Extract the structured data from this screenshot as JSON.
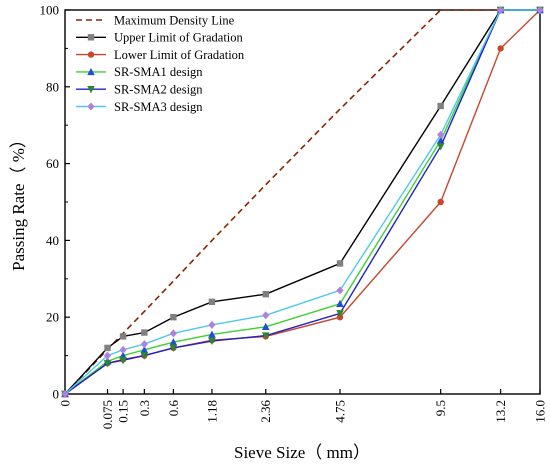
{
  "chart_data": {
    "type": "line",
    "xlabel": "Sieve Size（ mm）",
    "ylabel": "Passing Rate（ %）",
    "ylim": [
      0,
      100
    ],
    "y_ticks": [
      0,
      20,
      40,
      60,
      80,
      100
    ],
    "x_tick_labels": [
      "0",
      "0.075",
      "0.15",
      "0.3",
      "0.6",
      "1.18",
      "2.36",
      "4.75",
      "9.5",
      "13.2",
      "16.0"
    ],
    "x_scale": "power 0.45 of sieve size",
    "grid": false,
    "legend": "top-left",
    "series": [
      {
        "name": "Maximum Density Line",
        "color": "#8B2500",
        "style": "dashed",
        "marker": "none",
        "x": [
          0,
          0.075,
          0.15,
          0.3,
          0.6,
          1.18,
          2.36,
          4.75,
          9.5,
          13.2,
          16.0
        ],
        "y": [
          0,
          11.6,
          15.8,
          21.5,
          29.4,
          40.0,
          54.5,
          74.2,
          100,
          100,
          100
        ]
      },
      {
        "name": "Upper Limit of Gradation",
        "color": "#000000",
        "style": "solid",
        "marker": "square",
        "x": [
          0,
          0.075,
          0.15,
          0.3,
          0.6,
          1.18,
          2.36,
          4.75,
          9.5,
          13.2,
          16.0
        ],
        "y": [
          0,
          12,
          15,
          16,
          20,
          24,
          26,
          34,
          75,
          100,
          100
        ]
      },
      {
        "name": "Lower Limit of Gradation",
        "color": "#C8472C",
        "style": "solid",
        "marker": "circle",
        "x": [
          0,
          0.075,
          0.15,
          0.3,
          0.6,
          1.18,
          2.36,
          4.75,
          9.5,
          13.2,
          16.0
        ],
        "y": [
          0,
          8,
          9,
          10,
          12,
          14,
          15,
          20,
          50,
          90,
          100
        ]
      },
      {
        "name": "SR-SMA1 design",
        "color": "#3FCF2E",
        "style": "solid",
        "marker": "triangle",
        "x": [
          0,
          0.075,
          0.15,
          0.3,
          0.6,
          1.18,
          2.36,
          4.75,
          9.5,
          13.2,
          16.0
        ],
        "y": [
          0,
          8.5,
          10,
          11.5,
          13.5,
          15.5,
          17.5,
          23.5,
          66,
          100,
          100
        ]
      },
      {
        "name": "SR-SMA2 design",
        "color": "#2222CC",
        "style": "solid",
        "marker": "down-triangle",
        "x": [
          0,
          0.075,
          0.15,
          0.3,
          0.6,
          1.18,
          2.36,
          4.75,
          9.5,
          13.2,
          16.0
        ],
        "y": [
          0,
          8,
          8.8,
          10,
          12,
          13.8,
          15.2,
          21,
          64.5,
          100,
          100
        ]
      },
      {
        "name": "SR-SMA3 design",
        "color": "#4FC8EE",
        "style": "solid",
        "marker": "diamond",
        "x": [
          0,
          0.075,
          0.15,
          0.3,
          0.6,
          1.18,
          2.36,
          4.75,
          9.5,
          13.2,
          16.0
        ],
        "y": [
          0,
          10,
          11.5,
          13,
          15.8,
          18,
          20.5,
          27,
          67.5,
          100,
          100
        ]
      }
    ],
    "series_marker_colors": {
      "Maximum Density Line": "#8B2500",
      "Upper Limit of Gradation": "#808080",
      "Lower Limit of Gradation": "#C8472C",
      "SR-SMA1 design": "#1F4FD8",
      "SR-SMA2 design": "#2A8A2A",
      "SR-SMA3 design": "#B080E0"
    }
  }
}
